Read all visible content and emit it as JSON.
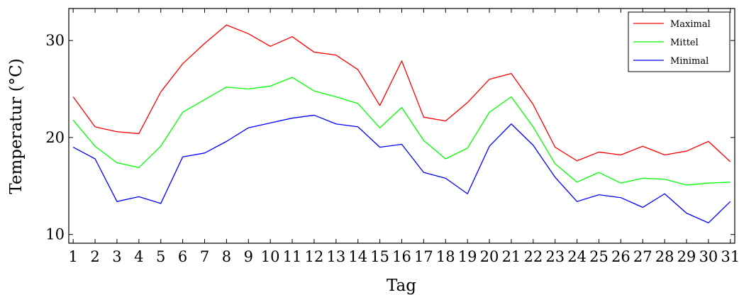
{
  "chart_data": {
    "type": "line",
    "xlabel": "Tag",
    "ylabel": "Temperatur (°C)",
    "xlim": [
      0.8,
      31.2
    ],
    "ylim": [
      9.1,
      33.3
    ],
    "x": [
      1,
      2,
      3,
      4,
      5,
      6,
      7,
      8,
      9,
      10,
      11,
      12,
      13,
      14,
      15,
      16,
      17,
      18,
      19,
      20,
      21,
      22,
      23,
      24,
      25,
      26,
      27,
      28,
      29,
      30,
      31
    ],
    "x_ticks": [
      "1",
      "2",
      "3",
      "4",
      "5",
      "6",
      "7",
      "8",
      "9",
      "10",
      "11",
      "12",
      "13",
      "14",
      "15",
      "16",
      "17",
      "18",
      "19",
      "20",
      "21",
      "22",
      "23",
      "24",
      "25",
      "26",
      "27",
      "28",
      "29",
      "30",
      "31"
    ],
    "y_ticks": [
      10,
      20,
      30
    ],
    "y_tick_labels": [
      "10",
      "20",
      "30"
    ],
    "grid": false,
    "legend_position": "top-right",
    "series": [
      {
        "name": "Maximal",
        "color": "#ff0000",
        "values": [
          24.2,
          21.1,
          20.6,
          20.4,
          24.7,
          27.6,
          29.7,
          31.6,
          30.7,
          29.4,
          30.4,
          28.8,
          28.5,
          27.0,
          23.3,
          27.9,
          22.1,
          21.7,
          23.6,
          26.0,
          26.6,
          23.4,
          19.0,
          17.6,
          18.5,
          18.2,
          19.1,
          18.2,
          18.6,
          19.6,
          17.5
        ]
      },
      {
        "name": "Mittel",
        "color": "#00ff00",
        "values": [
          21.8,
          19.1,
          17.4,
          16.9,
          19.1,
          22.6,
          23.9,
          25.2,
          25.0,
          25.3,
          26.2,
          24.8,
          24.2,
          23.5,
          21.0,
          23.1,
          19.7,
          17.8,
          18.9,
          22.6,
          24.2,
          21.1,
          17.3,
          15.4,
          16.4,
          15.3,
          15.8,
          15.7,
          15.1,
          15.3,
          15.4
        ]
      },
      {
        "name": "Minimal",
        "color": "#0000ff",
        "values": [
          19.0,
          17.8,
          13.4,
          13.9,
          13.2,
          18.0,
          18.4,
          19.6,
          21.0,
          21.5,
          22.0,
          22.3,
          21.4,
          21.1,
          19.0,
          19.3,
          16.4,
          15.8,
          14.2,
          19.1,
          21.4,
          19.2,
          15.9,
          13.4,
          14.1,
          13.8,
          12.8,
          14.2,
          12.2,
          11.2,
          13.4
        ]
      }
    ]
  }
}
